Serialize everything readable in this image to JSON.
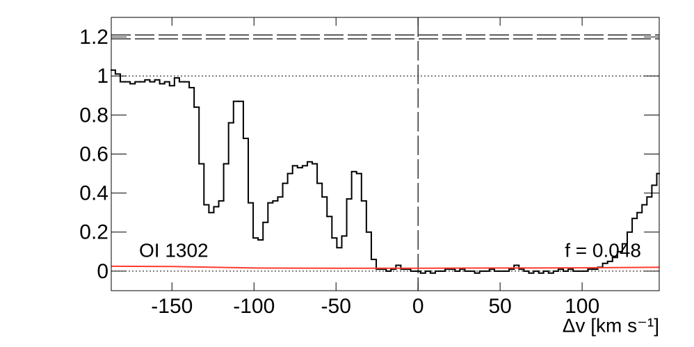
{
  "chart_data": {
    "type": "step",
    "xlabel": "Δv [km s⁻¹]",
    "annotations": [
      "OI 1302",
      "f = 0.048"
    ],
    "xlim": [
      -187,
      147
    ],
    "ylim": [
      -0.1,
      1.3
    ],
    "xticks": [
      -150,
      -100,
      -50,
      0,
      50,
      100
    ],
    "yticks": [
      0,
      0.2,
      0.4,
      0.6,
      0.8,
      1,
      1.2
    ],
    "dotted_y": [
      0,
      1
    ],
    "dashed_y": [
      1.19,
      1.21
    ],
    "dashed_x": [
      0
    ],
    "series": [
      {
        "color": "#000000",
        "x": [
          -186,
          -183,
          -180,
          -177,
          -174,
          -171,
          -168,
          -165,
          -162,
          -159,
          -156,
          -153,
          -150,
          -147,
          -144,
          -141,
          -138,
          -135,
          -132,
          -129,
          -126,
          -123,
          -120,
          -117,
          -114,
          -111,
          -108,
          -105,
          -102,
          -99,
          -96,
          -93,
          -90,
          -87,
          -84,
          -81,
          -78,
          -75,
          -72,
          -69,
          -66,
          -63,
          -60,
          -57,
          -54,
          -51,
          -48,
          -45,
          -42,
          -39,
          -36,
          -33,
          -30,
          -27,
          -24,
          -21,
          -18,
          -15,
          -12,
          -9,
          -6,
          -3,
          0,
          3,
          6,
          9,
          12,
          15,
          18,
          21,
          24,
          27,
          30,
          33,
          36,
          39,
          42,
          45,
          48,
          51,
          54,
          57,
          60,
          63,
          66,
          69,
          72,
          75,
          78,
          81,
          84,
          87,
          90,
          93,
          96,
          99,
          102,
          105,
          108,
          111,
          114,
          117,
          120,
          123,
          126,
          129,
          132,
          135,
          138,
          141,
          144,
          147
        ],
        "values": [
          1.03,
          1.01,
          0.97,
          0.97,
          0.96,
          0.97,
          0.97,
          0.98,
          0.97,
          0.98,
          0.96,
          0.97,
          0.95,
          0.99,
          0.97,
          0.97,
          0.94,
          0.84,
          0.55,
          0.34,
          0.3,
          0.33,
          0.36,
          0.55,
          0.76,
          0.87,
          0.87,
          0.68,
          0.35,
          0.17,
          0.16,
          0.25,
          0.35,
          0.36,
          0.38,
          0.45,
          0.5,
          0.54,
          0.53,
          0.54,
          0.56,
          0.55,
          0.45,
          0.38,
          0.28,
          0.17,
          0.12,
          0.18,
          0.37,
          0.51,
          0.5,
          0.36,
          0.2,
          0.06,
          0.01,
          0.01,
          0.0,
          0.01,
          0.03,
          0.01,
          0.01,
          0.0,
          0.0,
          -0.01,
          0.0,
          -0.01,
          0.0,
          0.0,
          0.01,
          0.01,
          0.0,
          0.01,
          0.0,
          0.0,
          -0.01,
          0.0,
          0.0,
          0.01,
          0.0,
          0.0,
          0.0,
          0.01,
          0.03,
          0.01,
          0.0,
          -0.01,
          0.0,
          -0.01,
          0.0,
          -0.01,
          0.0,
          0.01,
          0.0,
          0.01,
          0.0,
          0.0,
          0.0,
          0.01,
          0.01,
          0.02,
          0.04,
          0.05,
          0.07,
          0.1,
          0.14,
          0.2,
          0.27,
          0.3,
          0.34,
          0.38,
          0.44,
          0.5
        ]
      },
      {
        "color": "#ff3b30",
        "x": [
          -187,
          -150,
          -100,
          -50,
          0,
          50,
          100,
          147
        ],
        "values": [
          0.025,
          0.024,
          0.016,
          0.015,
          0.015,
          0.016,
          0.017,
          0.02
        ]
      }
    ]
  }
}
